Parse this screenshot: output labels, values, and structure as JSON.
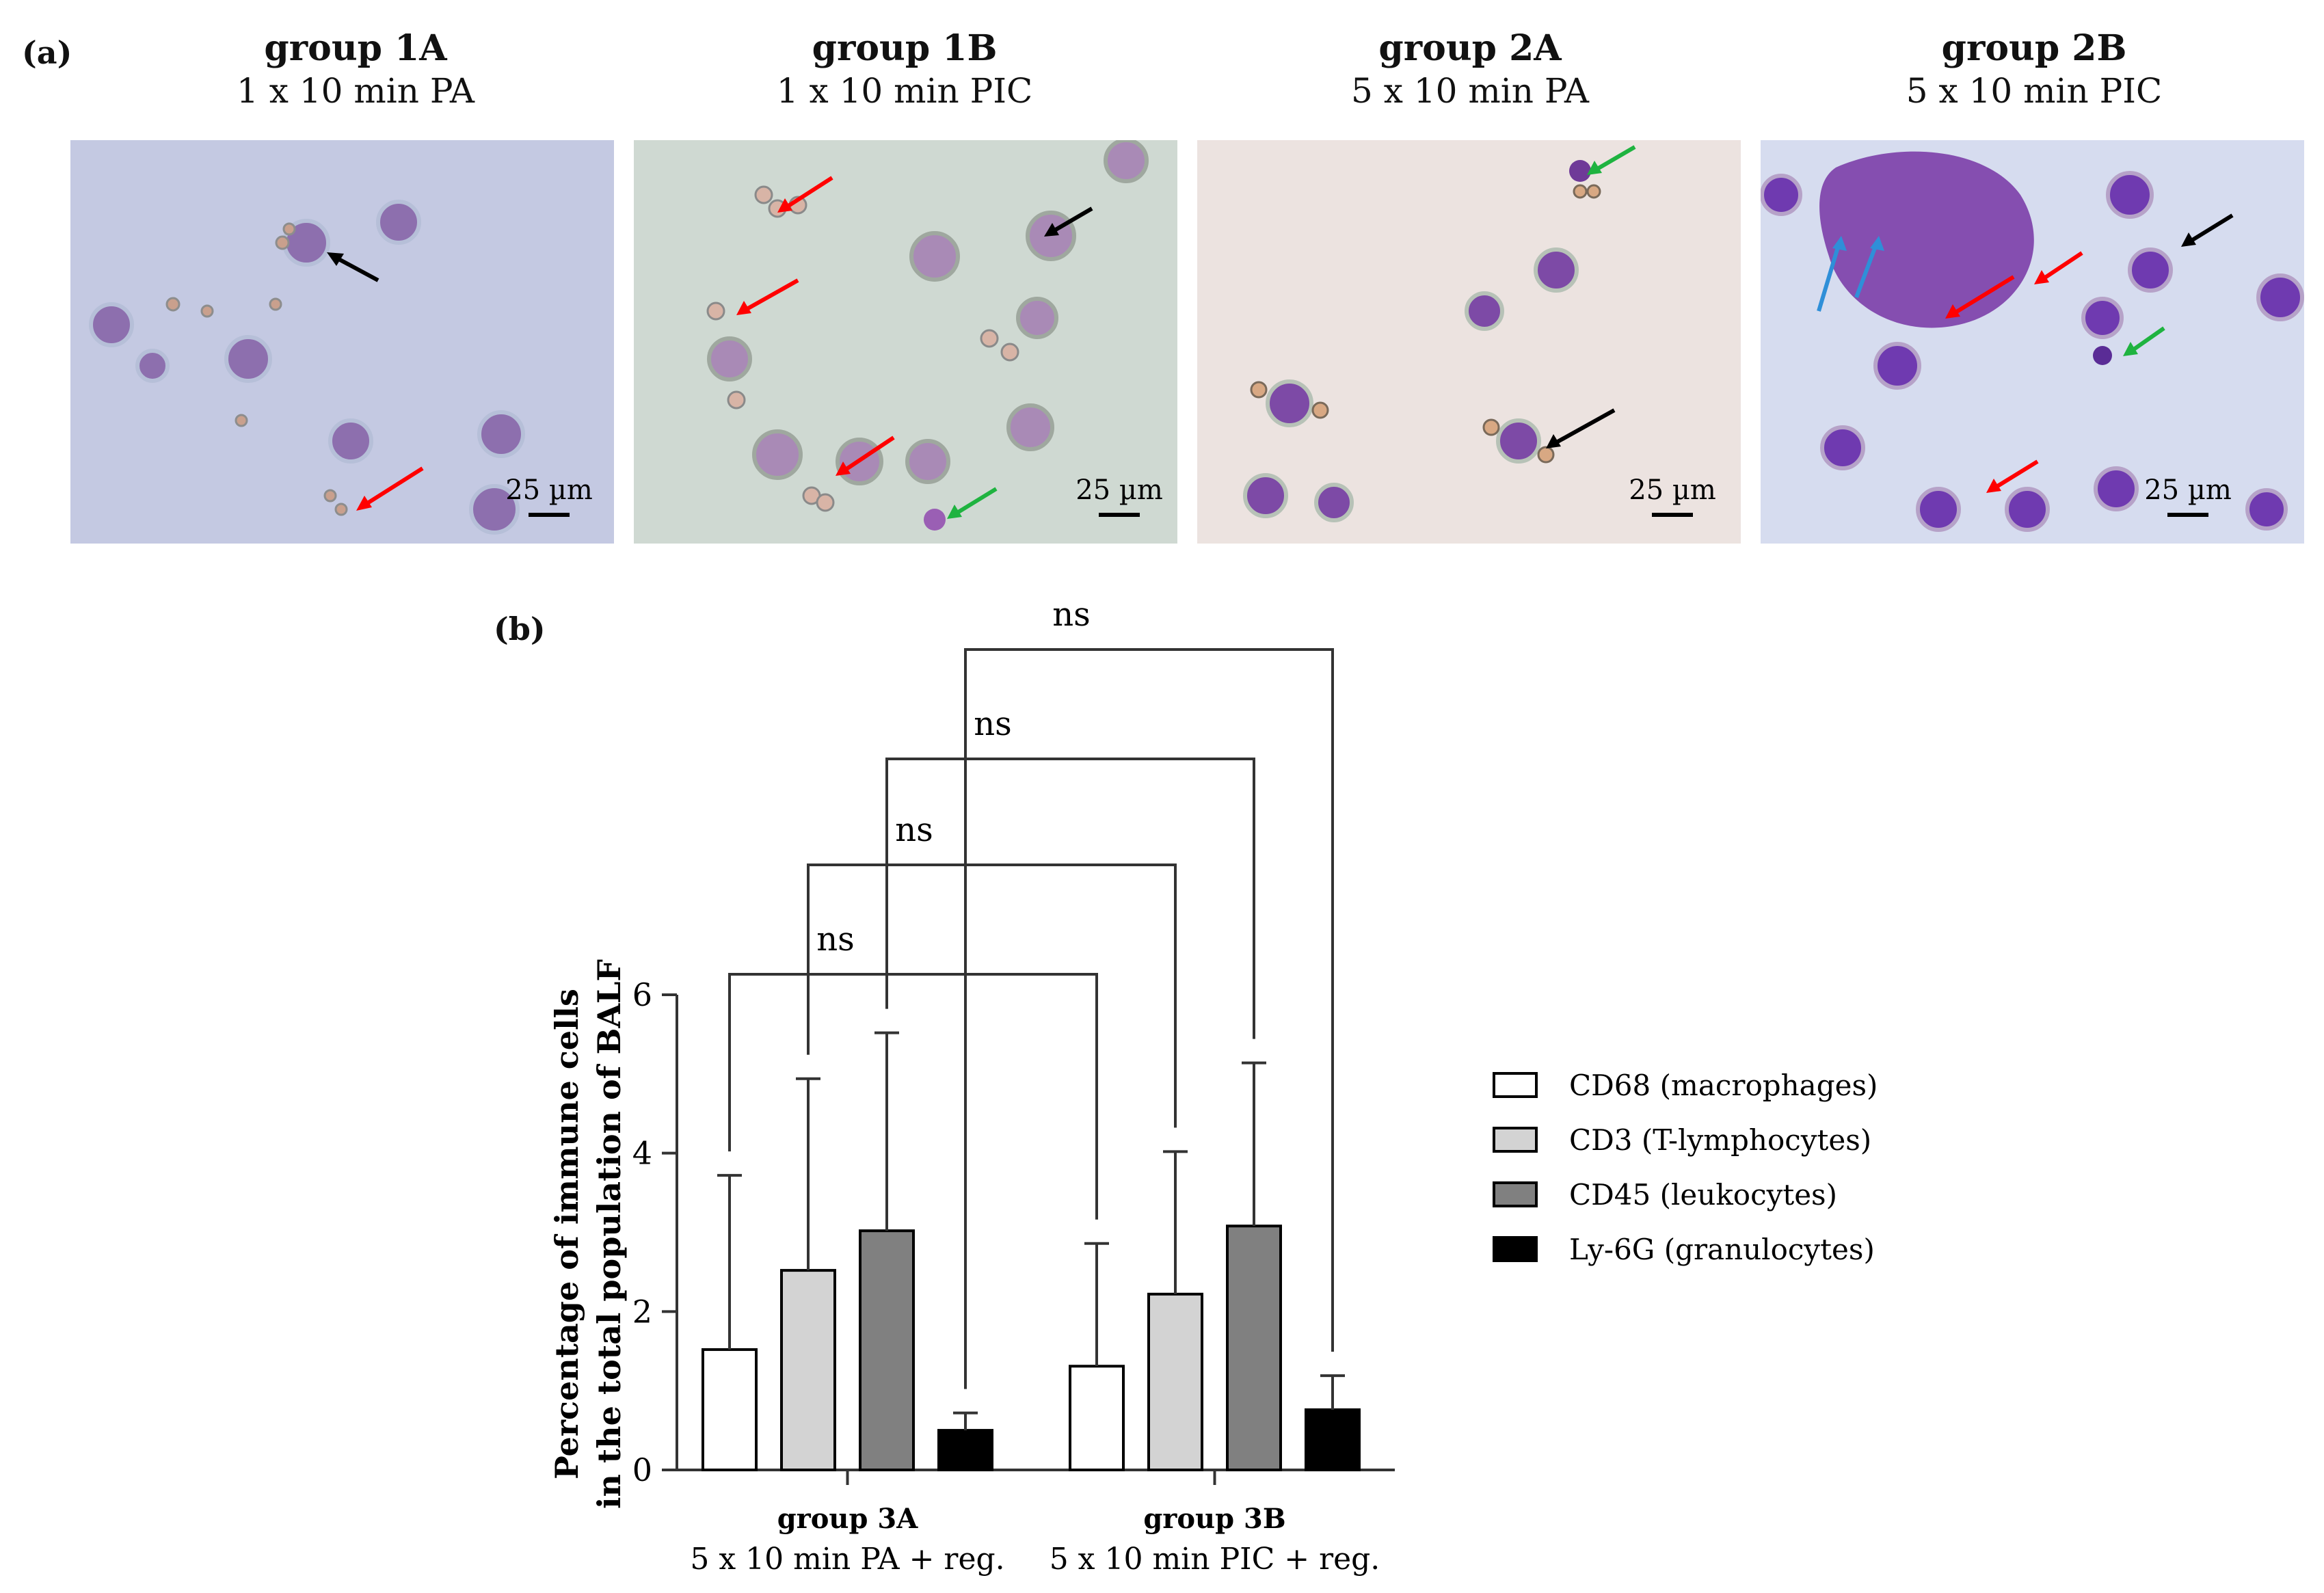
{
  "panel_a": {
    "label": "(a)",
    "images": [
      {
        "group": "group 1A",
        "condition": "1 x 10 min PA",
        "scale_bar": "25 µm",
        "bg": "#c9cde0"
      },
      {
        "group": "group 1B",
        "condition": "1 x 10 min PIC",
        "scale_bar": "25 µm",
        "bg": "#cfd9d2"
      },
      {
        "group": "group 2A",
        "condition": "5 x 10 min PA",
        "scale_bar": "25 µm",
        "bg": "#ece3e0"
      },
      {
        "group": "group 2B",
        "condition": "5 x 10 min PIC",
        "scale_bar": "25 µm",
        "bg": "#d6dcef"
      }
    ],
    "arrow_colors": {
      "black": "#000000",
      "red": "#ff0000",
      "green": "#1fb340",
      "blue": "#2f8fd8"
    }
  },
  "panel_b": {
    "label": "(b)",
    "chart_data": {
      "type": "bar",
      "categories": [
        "group 3A",
        "group 3B"
      ],
      "category_sublabels": [
        "5 x 10 min PA + reg.",
        "5 x 10 min PIC + reg."
      ],
      "ylabel_line1": "Percentage of immune cells",
      "ylabel_line2": "in the total population of BALF",
      "xlabel": "",
      "title": "",
      "ylim": [
        0,
        6
      ],
      "yticks": [
        0,
        2,
        4,
        6
      ],
      "legend_position": "right",
      "series": [
        {
          "name": "CD68 (macrophages)",
          "color": "#ffffff",
          "values": [
            1.52,
            1.31
          ],
          "errors": [
            2.2,
            1.55
          ]
        },
        {
          "name": "CD3 (T-lymphocytes)",
          "color": "#d3d3d3",
          "values": [
            2.52,
            2.22
          ],
          "errors": [
            2.42,
            1.8
          ]
        },
        {
          "name": "CD45 (leukocytes)",
          "color": "#808080",
          "values": [
            3.02,
            3.08
          ],
          "errors": [
            2.5,
            2.06
          ]
        },
        {
          "name": "Ly-6G (granulocytes)",
          "color": "#000000",
          "values": [
            0.5,
            0.76
          ],
          "errors": [
            0.22,
            0.43
          ]
        }
      ],
      "comparisons": [
        {
          "series": "CD68 (macrophages)",
          "label": "ns"
        },
        {
          "series": "CD3 (T-lymphocytes)",
          "label": "ns"
        },
        {
          "series": "CD45 (leukocytes)",
          "label": "ns"
        },
        {
          "series": "Ly-6G (granulocytes)",
          "label": "ns"
        }
      ]
    }
  }
}
